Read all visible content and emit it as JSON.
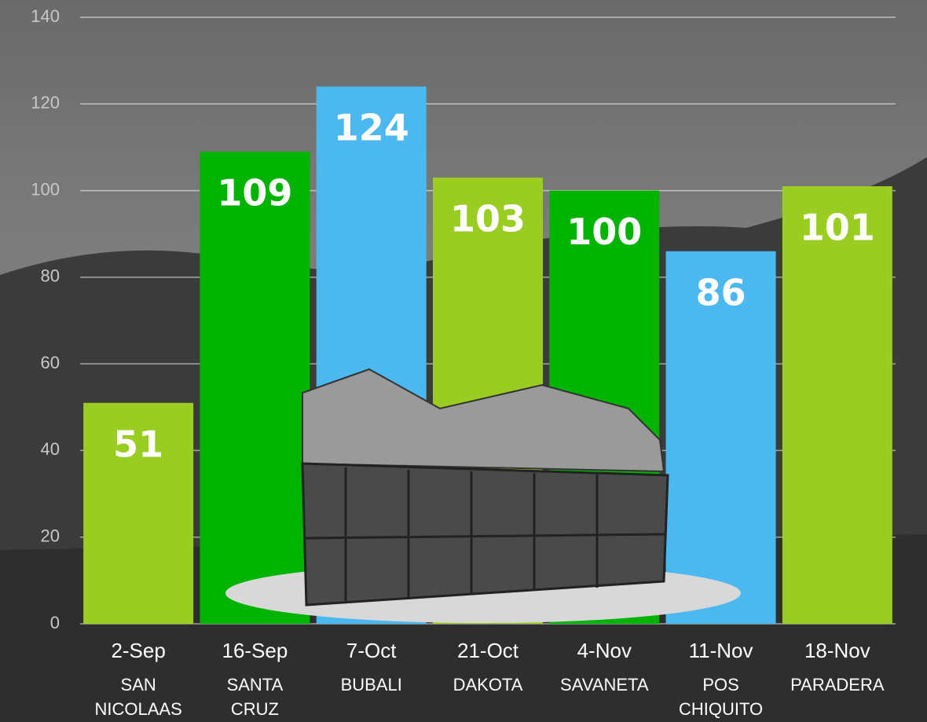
{
  "chart_data": {
    "type": "bar",
    "categories": [
      "2-Sep",
      "16-Sep",
      "7-Oct",
      "21-Oct",
      "4-Nov",
      "11-Nov",
      "18-Nov"
    ],
    "locations": [
      "SAN NICOLAAS",
      "SANTA CRUZ",
      "BUBALI",
      "DAKOTA",
      "SAVANETA",
      "POS CHIQUITO",
      "PARADERA"
    ],
    "values": [
      51,
      109,
      124,
      103,
      100,
      86,
      101
    ],
    "colors": [
      "#9acd22",
      "#00b300",
      "#4cb8f0",
      "#9acd22",
      "#00b300",
      "#4cb8f0",
      "#9acd22"
    ],
    "ylim": [
      0,
      140
    ],
    "yticks": [
      0,
      20,
      40,
      60,
      80,
      100,
      120,
      140
    ],
    "grid": true
  }
}
